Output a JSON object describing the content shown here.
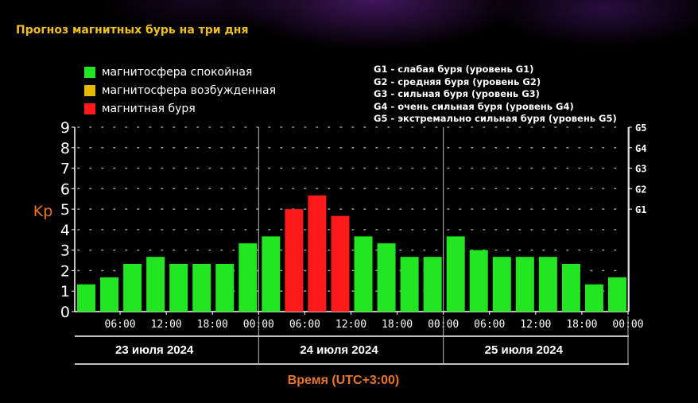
{
  "title": "Прогноз магнитных бурь на три дня",
  "legend": [
    {
      "label": "магнитосфера спокойная",
      "color": "#22e622"
    },
    {
      "label": "магнитосфера возбужденная",
      "color": "#e6b800"
    },
    {
      "label": "магнитная буря",
      "color": "#ff1a1a"
    }
  ],
  "storm_levels": [
    "G1 - слабая буря (уровень G1)",
    "G2 - средняя буря (уровень G2)",
    "G3 - сильная буря (уровень G3)",
    "G4 - очень сильная буря (уровень G4)",
    "G5 - экстремально сильная буря (уровень G5)"
  ],
  "colors": {
    "background": "#000000",
    "title": "#f0c020",
    "axis_label": "#e8762a",
    "text": "#ffffff",
    "grid_dot": "#9a9a9a",
    "quiet": "#22e622",
    "storm": "#ff1a1a"
  },
  "chart_data": {
    "type": "bar",
    "ylabel": "Kp",
    "xlabel": "Время (UTC+3:00)",
    "ylim": [
      0,
      9
    ],
    "yticks": [
      0,
      1,
      2,
      3,
      4,
      5,
      6,
      7,
      8,
      9
    ],
    "right_axis": [
      {
        "label": "G1",
        "kp": 5
      },
      {
        "label": "G2",
        "kp": 6
      },
      {
        "label": "G3",
        "kp": 7
      },
      {
        "label": "G4",
        "kp": 8
      },
      {
        "label": "G5",
        "kp": 9
      }
    ],
    "x_tick_labels": [
      "06:00",
      "12:00",
      "18:00",
      "00:00",
      "06:00",
      "12:00",
      "18:00",
      "00:00",
      "06:00",
      "12:00",
      "18:00",
      "00:00"
    ],
    "days": [
      "23 июля 2024",
      "24 июля 2024",
      "25 июля 2024"
    ],
    "grid": true,
    "series": [
      {
        "values": [
          1.33,
          1.67,
          2.33,
          2.67,
          2.33,
          2.33,
          2.33,
          3.33,
          3.67,
          5.0,
          5.67,
          4.67,
          3.67,
          3.33,
          2.67,
          2.67,
          3.67,
          3.0,
          2.67,
          2.67,
          2.67,
          2.33,
          1.33,
          1.67
        ],
        "levels": [
          "quiet",
          "quiet",
          "quiet",
          "quiet",
          "quiet",
          "quiet",
          "quiet",
          "quiet",
          "quiet",
          "storm",
          "storm",
          "storm",
          "quiet",
          "quiet",
          "quiet",
          "quiet",
          "quiet",
          "quiet",
          "quiet",
          "quiet",
          "quiet",
          "quiet",
          "quiet",
          "quiet"
        ]
      }
    ]
  }
}
